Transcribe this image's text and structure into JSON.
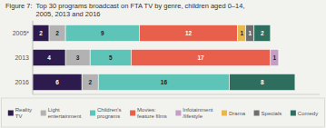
{
  "chart_data": {
    "type": "bar",
    "orientation": "horizontal",
    "stacked": true,
    "data_labels": true,
    "tick_labels": "y",
    "grid": false,
    "title": "Top 30 programs broadcast on FTA TV by genre, children aged 0–14,",
    "subtitle": "2005, 2013 and 2016",
    "annotations": [
      "Figure 7:"
    ],
    "categories": [
      "2005*",
      "2013",
      "2016"
    ],
    "xlim": [
      0,
      35
    ],
    "series": [
      {
        "name": "Reality\nTV",
        "color": "#2d1b4e",
        "values": [
          2,
          4,
          6
        ]
      },
      {
        "name": "Light\nentertainment",
        "color": "#b2b2b2",
        "values": [
          2,
          3,
          2
        ]
      },
      {
        "name": "Children's\nprograms",
        "color": "#5ec4b8",
        "values": [
          9,
          5,
          16
        ]
      },
      {
        "name": "Movies:\nfeature films",
        "color": "#e8604c",
        "values": [
          12,
          17,
          0
        ]
      },
      {
        "name": "Infotainment\n/lifestyle",
        "color": "#c49fc5",
        "values": [
          0,
          1,
          0
        ]
      },
      {
        "name": "Drama",
        "color": "#e8b84b",
        "values": [
          1,
          0,
          0
        ]
      },
      {
        "name": "Specials",
        "color": "#6e6e6e",
        "values": [
          1,
          0,
          0
        ]
      },
      {
        "name": "Comedy",
        "color": "#2d6e5e",
        "values": [
          2,
          0,
          8
        ]
      }
    ]
  }
}
